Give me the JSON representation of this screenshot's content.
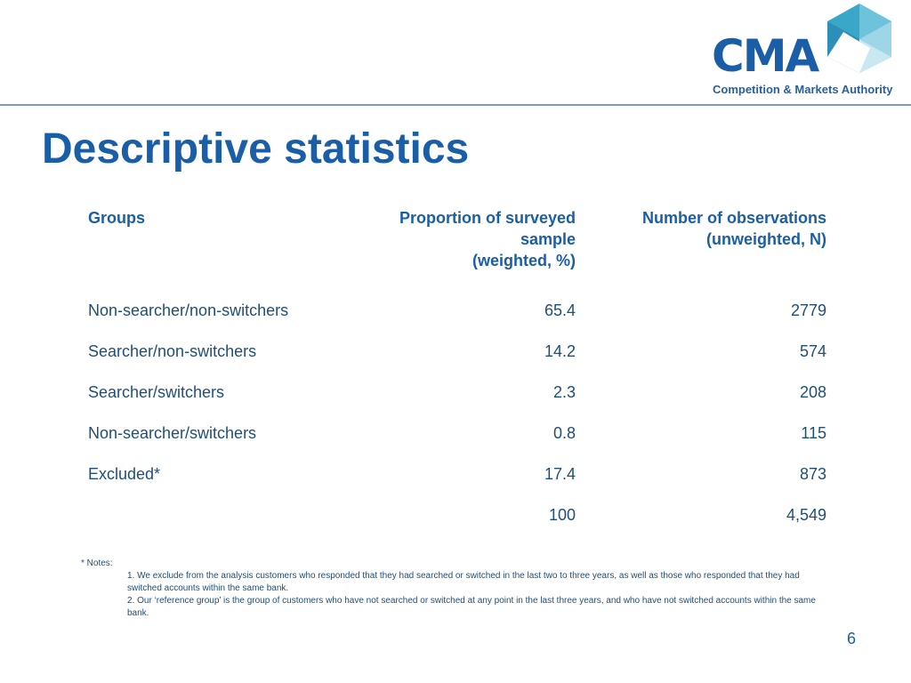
{
  "logo": {
    "word": "CMA",
    "subtitle": "Competition & Markets Authority"
  },
  "title": "Descriptive statistics",
  "table": {
    "headers": {
      "groups": [
        "Groups"
      ],
      "proportion": [
        "Proportion of surveyed",
        "sample",
        "(weighted, %)"
      ],
      "number": [
        "Number of observations",
        "(unweighted, N)"
      ]
    },
    "rows": [
      {
        "group": "Non-searcher/non-switchers",
        "proportion": "65.4",
        "number": "2779"
      },
      {
        "group": "Searcher/non-switchers",
        "proportion": "14.2",
        "number": "574"
      },
      {
        "group": "Searcher/switchers",
        "proportion": "2.3",
        "number": "208"
      },
      {
        "group": "Non-searcher/switchers",
        "proportion": "0.8",
        "number": "115"
      },
      {
        "group": "Excluded*",
        "proportion": "17.4",
        "number": "873"
      },
      {
        "group": "",
        "proportion": "100",
        "number": "4,549"
      }
    ]
  },
  "notes": {
    "heading": "* Notes:",
    "items": [
      "1. We exclude from the analysis customers who responded that they had searched or switched in the last two to three years, as well as those who responded that they had switched accounts within the same bank.",
      "2. Our ‘reference group’ is the group of customers who have not searched or switched at any point in the last three years, and who have not switched accounts within the same bank."
    ]
  },
  "page_number": "6",
  "colors": {
    "heading_blue": "#1b5ea8",
    "text_blue": "#1f4e79",
    "logo_teal": "#3aa6c8",
    "rule": "#7d9bbd"
  }
}
